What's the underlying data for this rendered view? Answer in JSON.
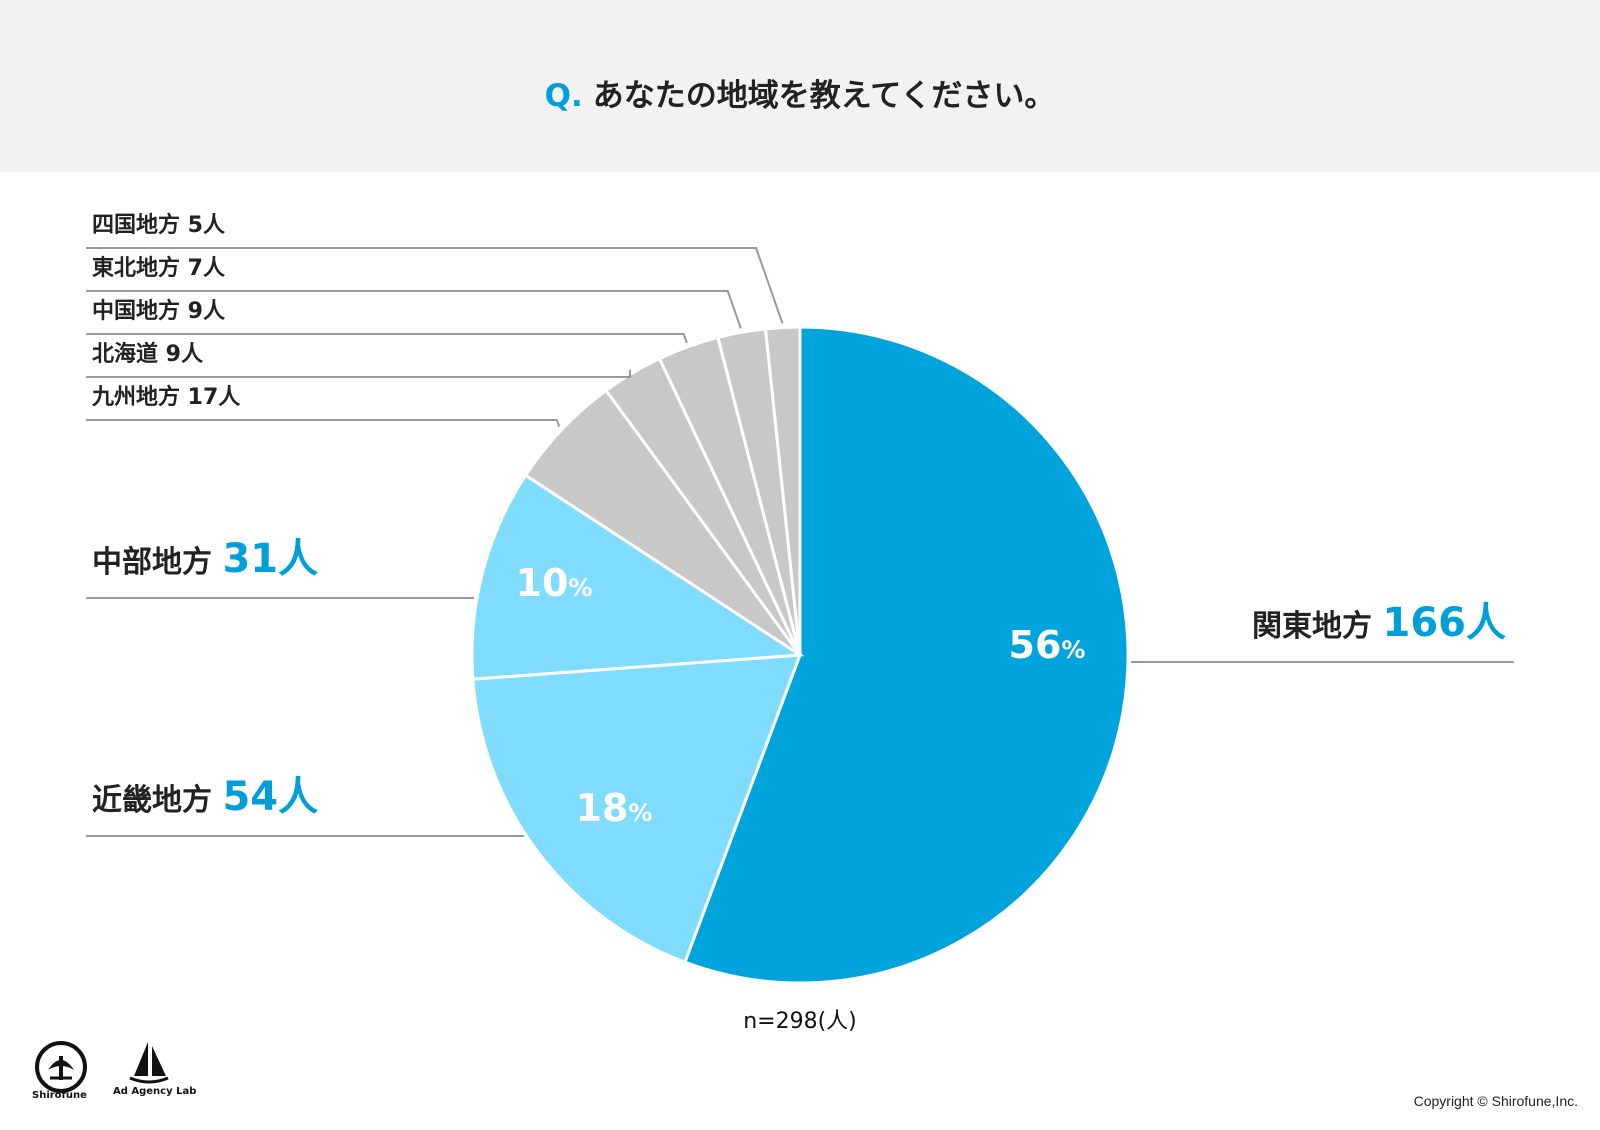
{
  "question": {
    "prefix": "Q.",
    "text": "あなたの地域を教えてください。"
  },
  "chart_data": {
    "type": "pie",
    "unit": "人",
    "total_label": "n=298(人)",
    "slices": [
      {
        "label": "関東地方",
        "value": 166,
        "count_text": "166人",
        "percent_text": "56%",
        "color": "#00a4dc"
      },
      {
        "label": "近畿地方",
        "value": 54,
        "count_text": "54人",
        "percent_text": "18%",
        "color": "#7fdcfd"
      },
      {
        "label": "中部地方",
        "value": 31,
        "count_text": "31人",
        "percent_text": "10%",
        "color": "#7fdcfd"
      },
      {
        "label": "九州地方",
        "value": 17,
        "count_text": "17人",
        "percent_text": "",
        "color": "#c8c8c8"
      },
      {
        "label": "北海道",
        "value": 9,
        "count_text": "9人",
        "percent_text": "",
        "color": "#c8c8c8"
      },
      {
        "label": "中国地方",
        "value": 9,
        "count_text": "9人",
        "percent_text": "",
        "color": "#c8c8c8"
      },
      {
        "label": "東北地方",
        "value": 7,
        "count_text": "7人",
        "percent_text": "",
        "color": "#c8c8c8"
      },
      {
        "label": "四国地方",
        "value": 5,
        "count_text": "5人",
        "percent_text": "",
        "color": "#c8c8c8"
      }
    ]
  },
  "logos": [
    {
      "name": "Shirofune",
      "caption": "Shirofune"
    },
    {
      "name": "Ad Agency Lab",
      "caption": "Ad Agency Lab"
    }
  ],
  "copyright": "Copyright © Shirofune,Inc.",
  "colors": {
    "accent": "#009fd9",
    "header_bg": "#f2f2f2",
    "leader_line": "#9a9a9a"
  }
}
